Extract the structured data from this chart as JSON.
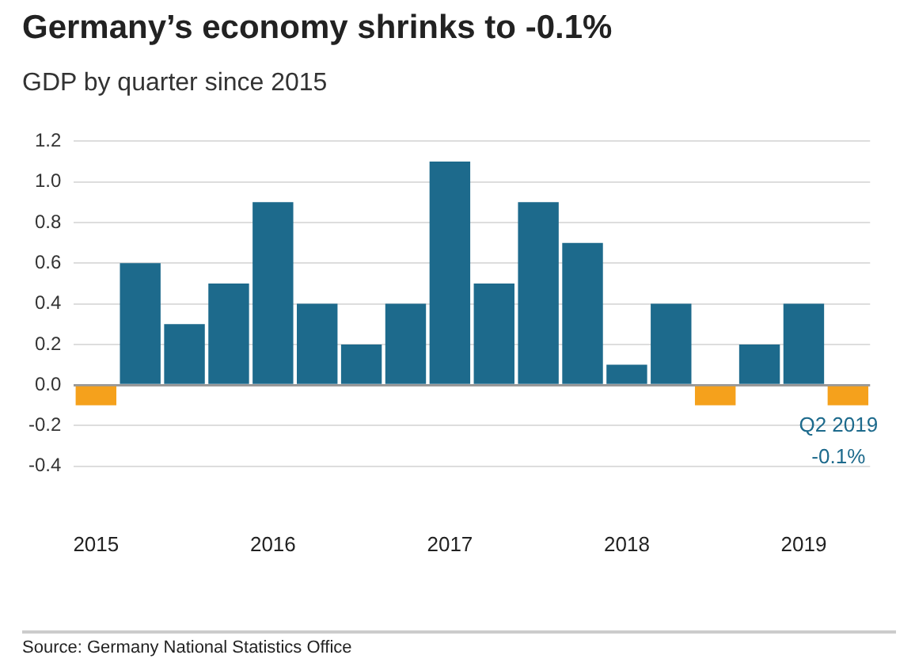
{
  "chart_data": {
    "type": "bar",
    "title": "Germany’s economy shrinks to -0.1%",
    "subtitle": "GDP by quarter since 2015",
    "categories": [
      "2015",
      null,
      null,
      null,
      "2016",
      null,
      null,
      null,
      "2017",
      null,
      null,
      null,
      "2018",
      null,
      null,
      null,
      "2019",
      null
    ],
    "values": [
      -0.1,
      0.6,
      0.3,
      0.5,
      0.9,
      0.4,
      0.2,
      0.4,
      1.1,
      0.5,
      0.9,
      0.7,
      0.1,
      0.4,
      -0.1,
      0.2,
      0.4,
      -0.1
    ],
    "colors": [
      "#f5a11c",
      "#1d6a8c",
      "#1d6a8c",
      "#1d6a8c",
      "#1d6a8c",
      "#1d6a8c",
      "#1d6a8c",
      "#1d6a8c",
      "#1d6a8c",
      "#1d6a8c",
      "#1d6a8c",
      "#1d6a8c",
      "#1d6a8c",
      "#1d6a8c",
      "#f5a11c",
      "#1d6a8c",
      "#1d6a8c",
      "#f5a11c"
    ],
    "ylim": [
      -0.4,
      1.2
    ],
    "yticks": [
      -0.4,
      -0.2,
      {
        "value": 0,
        "label": "0.0"
      },
      0.2,
      0.4,
      0.6,
      0.8,
      {
        "value": 1,
        "label": "1.0"
      },
      1.2
    ],
    "grid": "y",
    "legend": false,
    "annotations": [
      "Q2 2019\n-0.1%",
      "Source: Germany National Statistics Office"
    ]
  }
}
